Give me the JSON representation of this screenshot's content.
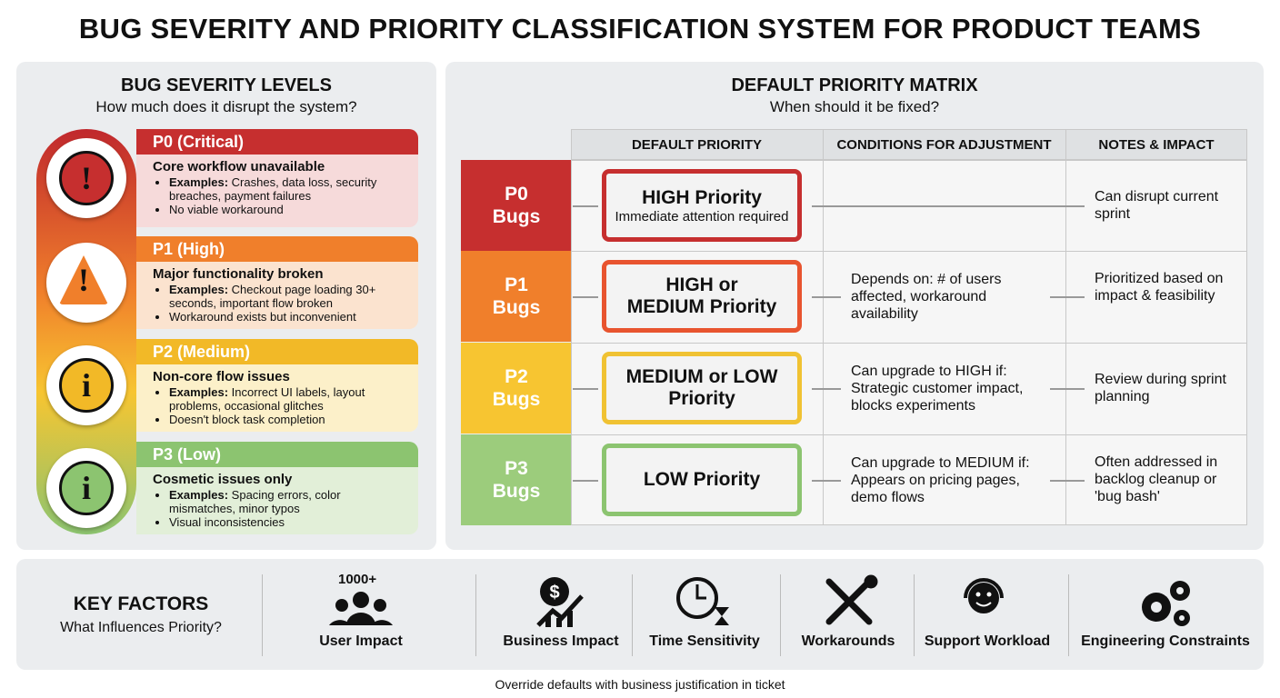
{
  "title": "BUG SEVERITY AND PRIORITY CLASSIFICATION SYSTEM FOR PRODUCT TEAMS",
  "severity": {
    "title": "BUG SEVERITY LEVELS",
    "subtitle": "How much does it disrupt the system?",
    "levels": [
      {
        "label": "P0 (Critical)",
        "heading": "Core workflow unavailable",
        "examples_label": "Examples:",
        "examples": "Crashes, data loss, security breaches, payment failures",
        "note": "No viable workaround"
      },
      {
        "label": "P1 (High)",
        "heading": "Major functionality broken",
        "examples_label": "Examples:",
        "examples": "Checkout page loading 30+ seconds, important flow broken",
        "note": "Workaround exists but inconvenient"
      },
      {
        "label": "P2 (Medium)",
        "heading": "Non-core flow issues",
        "examples_label": "Examples:",
        "examples": "Incorrect UI labels, layout problems, occasional glitches",
        "note": "Doesn't block task completion"
      },
      {
        "label": "P3 (Low)",
        "heading": "Cosmetic issues only",
        "examples_label": "Examples:",
        "examples": "Spacing errors, color mismatches, minor typos",
        "note": "Visual inconsistencies"
      }
    ]
  },
  "matrix": {
    "title": "DEFAULT PRIORITY MATRIX",
    "subtitle": "When should it be fixed?",
    "headers": [
      "DEFAULT PRIORITY",
      "CONDITIONS FOR ADJUSTMENT",
      "NOTES & IMPACT"
    ],
    "rows": [
      {
        "label": "P0 Bugs",
        "priority": "HIGH Priority",
        "priority_sub": "Immediate attention required",
        "notes": "Can disrupt current sprint"
      },
      {
        "label": "P1 Bugs",
        "priority": "HIGH or MEDIUM Priority",
        "condition": "Depends on: # of users affected, workaround availability",
        "notes": "Prioritized based on impact & feasibility"
      },
      {
        "label": "P2 Bugs",
        "priority": "MEDIUM or LOW Priority",
        "condition": "Can upgrade to HIGH if: Strategic customer impact, blocks experiments",
        "notes": "Review during sprint planning"
      },
      {
        "label": "P3 Bugs",
        "priority": "LOW Priority",
        "condition": "Can upgrade to MEDIUM if: Appears on pricing pages, demo flows",
        "notes": "Often addressed in backlog cleanup or 'bug bash'"
      }
    ]
  },
  "factors": {
    "title": "KEY FACTORS",
    "subtitle": "What Influences Priority?",
    "icon_text": "1000+",
    "items": [
      "User Impact",
      "Business Impact",
      "Time Sensitivity",
      "Workarounds",
      "Support Workload",
      "Engineering Constraints"
    ]
  },
  "footer": "Override defaults with business justification in ticket"
}
